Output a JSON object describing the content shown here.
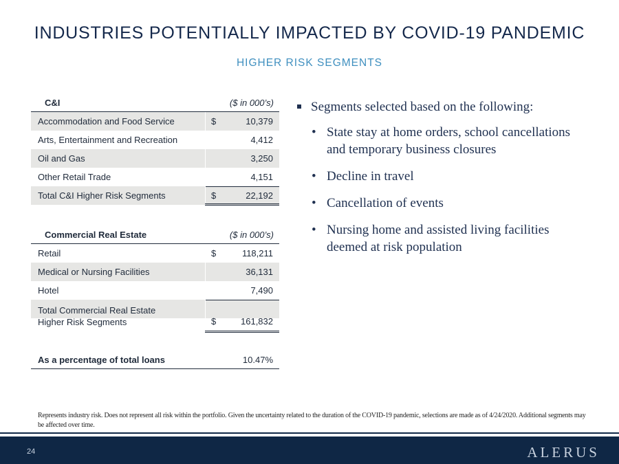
{
  "title": "INDUSTRIES POTENTIALLY IMPACTED BY COVID-19 PANDEMIC",
  "subtitle": "HIGHER RISK SEGMENTS",
  "ci_table": {
    "header": "C&I",
    "unit": "($ in 000’s)",
    "rows": [
      {
        "label": "Accommodation and Food Service",
        "dollar": "$",
        "value": "10,379"
      },
      {
        "label": "Arts, Entertainment and Recreation",
        "dollar": "",
        "value": "4,412"
      },
      {
        "label": "Oil and Gas",
        "dollar": "",
        "value": "3,250"
      },
      {
        "label": "Other Retail Trade",
        "dollar": "",
        "value": "4,151"
      }
    ],
    "total": {
      "label": "Total C&I Higher Risk Segments",
      "dollar": "$",
      "value": "22,192"
    }
  },
  "cre_table": {
    "header": "Commercial Real Estate",
    "unit": "($ in 000’s)",
    "rows": [
      {
        "label": "Retail",
        "dollar": "$",
        "value": "118,211"
      },
      {
        "label": "Medical or Nursing Facilities",
        "dollar": "",
        "value": "36,131"
      },
      {
        "label": "Hotel",
        "dollar": "",
        "value": "7,490"
      }
    ],
    "total": {
      "label_line1": "Total Commercial Real Estate",
      "label_line2": "Higher Risk Segments",
      "dollar": "$",
      "value": "161,832"
    }
  },
  "percent_row": {
    "label": "As a percentage of total loans",
    "value": "10.47%"
  },
  "bullets": {
    "main": "Segments selected based on the following:",
    "sub_marker": "•",
    "items": [
      "State stay at home orders, school cancellations and temporary business closures",
      "Decline in travel",
      "Cancellation of events",
      "Nursing home and assisted living facilities deemed at risk population"
    ]
  },
  "footnote": "Represents industry risk.  Does not represent all risk within the portfolio.  Given the uncertainty related to the duration of the COVID-19 pandemic, selections are made as of 4/24/2020. Additional segments may be affected over time.",
  "footer": {
    "page_number": "24",
    "logo": "ALERUS"
  }
}
